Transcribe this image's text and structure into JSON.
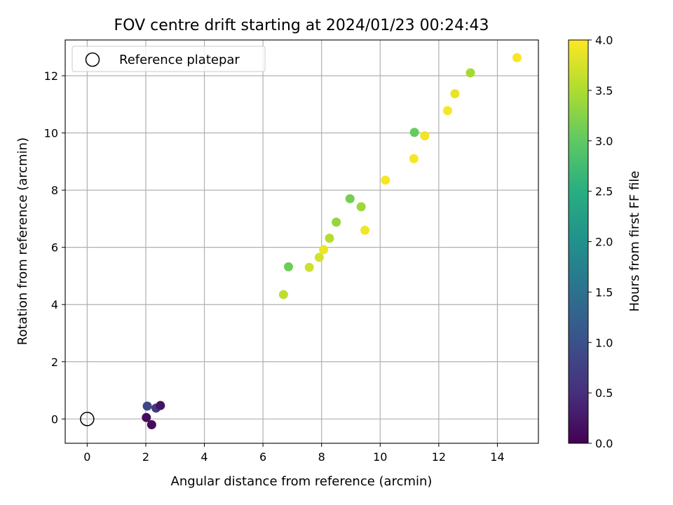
{
  "chart_data": {
    "type": "scatter",
    "title": "FOV centre drift starting at 2024/01/23 00:24:43",
    "xlabel": "Angular distance from reference (arcmin)",
    "ylabel": "Rotation from reference (arcmin)",
    "xlim": [
      -0.75,
      15.4
    ],
    "ylim": [
      -0.85,
      13.25
    ],
    "xticks": [
      0,
      2,
      4,
      6,
      8,
      10,
      12,
      14
    ],
    "yticks": [
      0,
      2,
      4,
      6,
      8,
      10,
      12
    ],
    "grid": true,
    "legend": {
      "position": "top-left",
      "entries": [
        "Reference platepar"
      ]
    },
    "reference_point": {
      "x": 0,
      "y": 0
    },
    "colorbar": {
      "label": "Hours from first FF file",
      "colormap": "viridis",
      "range": [
        0.0,
        4.0
      ],
      "ticks": [
        "0.0",
        "0.5",
        "1.0",
        "1.5",
        "2.0",
        "2.5",
        "3.0",
        "3.5",
        "4.0"
      ]
    },
    "points": [
      {
        "x": 2.05,
        "y": 0.45,
        "c": 0.85
      },
      {
        "x": 2.35,
        "y": 0.38,
        "c": 0.65
      },
      {
        "x": 2.5,
        "y": 0.47,
        "c": 0.2
      },
      {
        "x": 2.02,
        "y": 0.05,
        "c": 0.12
      },
      {
        "x": 2.2,
        "y": -0.2,
        "c": 0.1
      },
      {
        "x": 6.7,
        "y": 4.35,
        "c": 3.6
      },
      {
        "x": 6.87,
        "y": 5.32,
        "c": 3.1
      },
      {
        "x": 7.58,
        "y": 5.3,
        "c": 3.7
      },
      {
        "x": 7.92,
        "y": 5.65,
        "c": 3.75
      },
      {
        "x": 8.07,
        "y": 5.92,
        "c": 3.9
      },
      {
        "x": 8.27,
        "y": 6.32,
        "c": 3.55
      },
      {
        "x": 8.5,
        "y": 6.88,
        "c": 3.35
      },
      {
        "x": 8.97,
        "y": 7.7,
        "c": 3.15
      },
      {
        "x": 9.35,
        "y": 7.42,
        "c": 3.4
      },
      {
        "x": 9.48,
        "y": 6.6,
        "c": 3.92
      },
      {
        "x": 10.18,
        "y": 8.35,
        "c": 3.95
      },
      {
        "x": 11.15,
        "y": 9.1,
        "c": 3.97
      },
      {
        "x": 11.17,
        "y": 10.02,
        "c": 3.05
      },
      {
        "x": 11.52,
        "y": 9.9,
        "c": 3.92
      },
      {
        "x": 12.3,
        "y": 10.78,
        "c": 3.97
      },
      {
        "x": 12.55,
        "y": 11.37,
        "c": 3.88
      },
      {
        "x": 13.08,
        "y": 12.1,
        "c": 3.45
      },
      {
        "x": 14.67,
        "y": 12.63,
        "c": 3.97
      }
    ]
  }
}
